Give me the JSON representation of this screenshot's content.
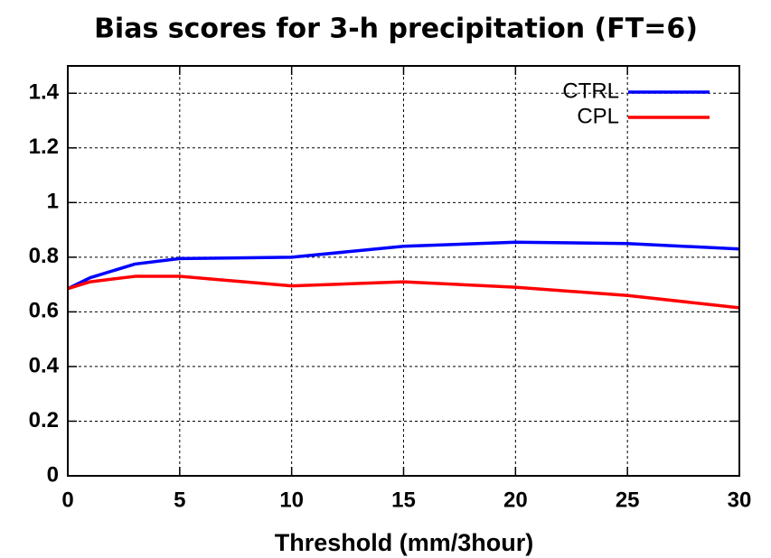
{
  "chart_data": {
    "type": "line",
    "title": "Bias scores for 3-h precipitation (FT=6)",
    "x_label": "Threshold (mm/3hour)",
    "x": [
      0,
      1,
      3,
      5,
      10,
      15,
      20,
      25,
      30
    ],
    "series": [
      {
        "name": "CTRL",
        "color": "#0000ff",
        "values": [
          0.685,
          0.725,
          0.775,
          0.795,
          0.8,
          0.84,
          0.855,
          0.85,
          0.83
        ]
      },
      {
        "name": "CPL",
        "color": "#ff0000",
        "values": [
          0.685,
          0.71,
          0.73,
          0.73,
          0.695,
          0.71,
          0.69,
          0.66,
          0.615
        ]
      }
    ],
    "xlim": [
      0,
      30
    ],
    "xticks": [
      0,
      5,
      10,
      15,
      20,
      25,
      30
    ],
    "ylim": [
      0,
      1.5
    ],
    "yticks": [
      0,
      0.2,
      0.4,
      0.6,
      0.8,
      1,
      1.2,
      1.4
    ],
    "grid": true,
    "legend": "upper right"
  }
}
